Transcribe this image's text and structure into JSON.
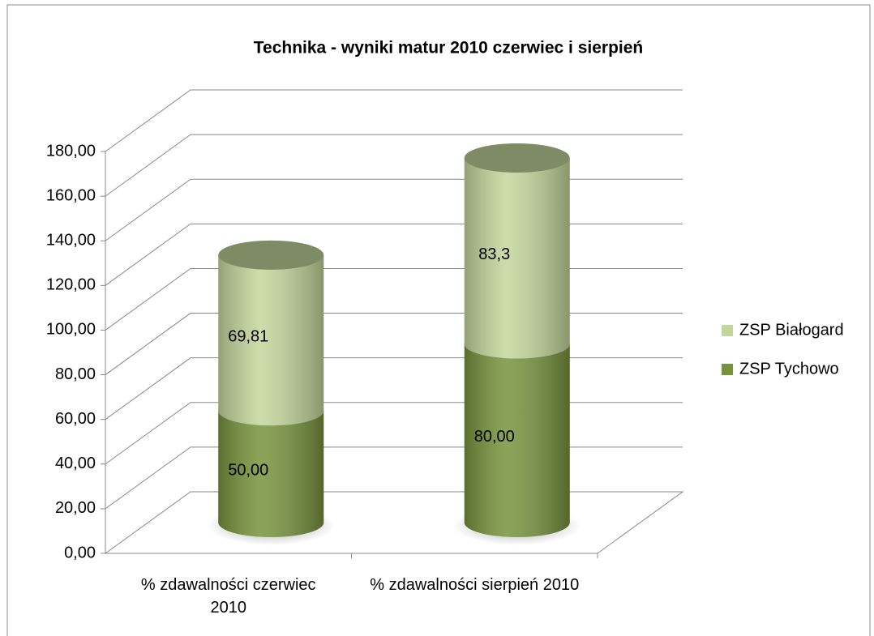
{
  "chart_data": {
    "type": "bar3d-cylinder-stacked",
    "title": "Technika - wyniki matur 2010 czerwiec i sierpień",
    "categories": [
      "% zdawalności czerwiec 2010",
      "% zdawalności sierpień 2010"
    ],
    "series": [
      {
        "name": "ZSP Tychowo",
        "color": "#77933c",
        "values": [
          50,
          80
        ],
        "value_labels": [
          "50,00",
          "80,00"
        ]
      },
      {
        "name": "ZSP Białogard",
        "color": "#c3d69b",
        "values": [
          69.81,
          83.3
        ],
        "value_labels": [
          "69,81",
          "83,3"
        ]
      }
    ],
    "stacked": true,
    "ylim": [
      0,
      180
    ],
    "yticks": [
      {
        "value": 0,
        "label": "0,00"
      },
      {
        "value": 20,
        "label": "20,00"
      },
      {
        "value": 40,
        "label": "40,00"
      },
      {
        "value": 60,
        "label": "60,00"
      },
      {
        "value": 80,
        "label": "80,00"
      },
      {
        "value": 100,
        "label": "100,00"
      },
      {
        "value": 120,
        "label": "120,00"
      },
      {
        "value": 140,
        "label": "140,00"
      },
      {
        "value": 160,
        "label": "160,00"
      },
      {
        "value": 180,
        "label": "180,00"
      }
    ],
    "grid": true,
    "legend": "right"
  }
}
